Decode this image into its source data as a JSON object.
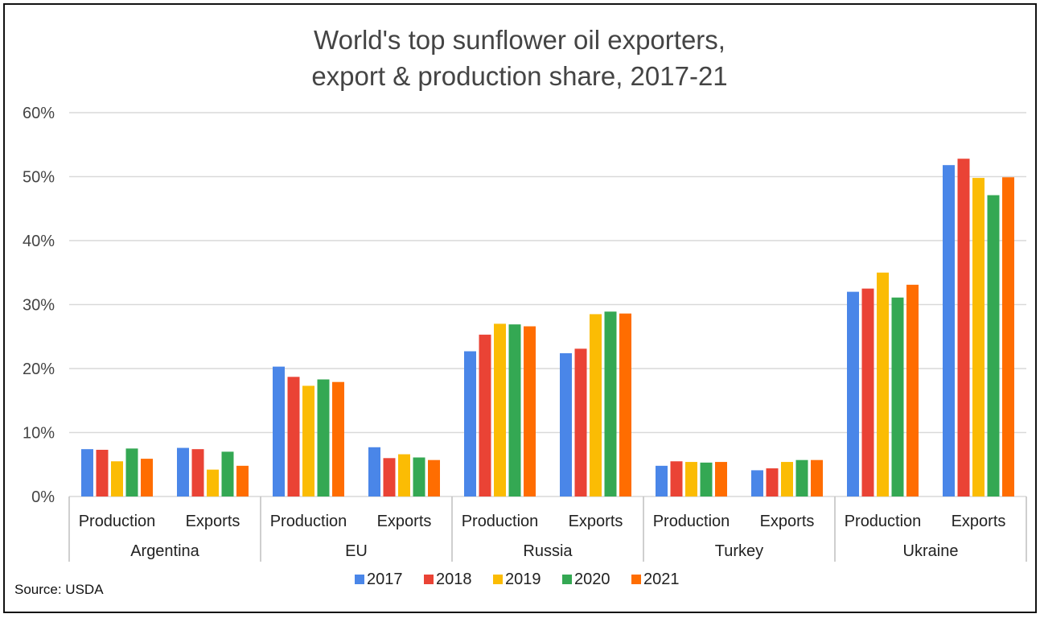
{
  "chart_data": {
    "type": "bar",
    "title_lines": [
      "World's top sunflower oil exporters,",
      "export & production share, 2017-21"
    ],
    "source": "Source: USDA",
    "ylim": [
      0,
      60
    ],
    "yticks": [
      "0%",
      "10%",
      "20%",
      "30%",
      "40%",
      "50%",
      "60%"
    ],
    "y_tick_values": [
      0,
      10,
      20,
      30,
      40,
      50,
      60
    ],
    "grid": true,
    "legend_position": "bottom",
    "groups": [
      "Argentina",
      "EU",
      "Russia",
      "Turkey",
      "Ukraine"
    ],
    "subcategories": [
      "Production",
      "Exports"
    ],
    "categories": [
      "Argentina Production",
      "Argentina Exports",
      "EU Production",
      "EU Exports",
      "Russia Production",
      "Russia Exports",
      "Turkey Production",
      "Turkey Exports",
      "Ukraine Production",
      "Ukraine Exports"
    ],
    "series": [
      {
        "name": "2017",
        "color": "#4a86e8",
        "values": [
          7.4,
          7.6,
          20.3,
          7.7,
          22.7,
          22.4,
          4.8,
          4.1,
          32.0,
          51.8
        ]
      },
      {
        "name": "2018",
        "color": "#ea4335",
        "values": [
          7.3,
          7.4,
          18.7,
          6.0,
          25.3,
          23.1,
          5.5,
          4.4,
          32.5,
          52.8
        ]
      },
      {
        "name": "2019",
        "color": "#fbbc04",
        "values": [
          5.5,
          4.2,
          17.3,
          6.6,
          27.0,
          28.5,
          5.4,
          5.4,
          35.0,
          49.8
        ]
      },
      {
        "name": "2020",
        "color": "#34a853",
        "values": [
          7.5,
          7.0,
          18.3,
          6.1,
          26.9,
          28.9,
          5.3,
          5.7,
          31.1,
          47.1
        ]
      },
      {
        "name": "2021",
        "color": "#ff6d01",
        "values": [
          5.9,
          4.8,
          17.9,
          5.7,
          26.6,
          28.6,
          5.4,
          5.7,
          33.1,
          49.9
        ]
      }
    ]
  }
}
